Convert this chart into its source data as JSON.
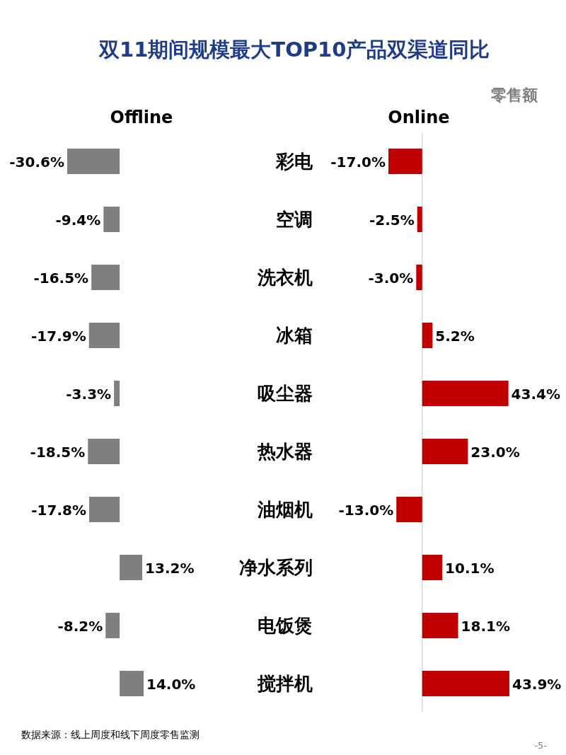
{
  "chart_data": [
    {
      "type": "other",
      "title": "双11期间规模最大TOP10产品双渠道同比",
      "subtitle": "零售额",
      "annotations": [
        "数据来源：线上周度和线下周度零售监测",
        "-5-"
      ]
    },
    {
      "type": "bar",
      "orientation": "horizontal",
      "title": "Offline",
      "tick_labels": "y",
      "categories": [
        "彩电",
        "空调",
        "洗衣机",
        "冰箱",
        "吸尘器",
        "热水器",
        "油烟机",
        "净水系列",
        "电饭煲",
        "搅拌机"
      ],
      "series": [
        {
          "color": "#7f7f7f",
          "values": [
            -30.6,
            -9.4,
            -16.5,
            -17.9,
            -3.3,
            -18.5,
            -17.8,
            13.2,
            -8.2,
            14.0
          ],
          "value_labels": [
            "-30.6%",
            "-9.4%",
            "-16.5%",
            "-17.9%",
            "-3.3%",
            "-18.5%",
            "-17.8%",
            "13.2%",
            "-8.2%",
            "14.0%"
          ]
        }
      ]
    },
    {
      "type": "bar",
      "orientation": "horizontal",
      "title": "Online",
      "tick_labels": false,
      "categories": [
        null,
        null,
        null,
        null,
        null,
        null,
        null,
        null,
        null,
        null
      ],
      "ref_lines": [
        {
          "axis": "x",
          "value": 0,
          "color": "#d9d9d9"
        }
      ],
      "series": [
        {
          "color": "#c00000",
          "values": [
            -17.0,
            -2.5,
            -3.0,
            5.2,
            43.4,
            23.0,
            -13.0,
            10.1,
            18.1,
            43.9
          ],
          "value_labels": [
            "-17.0%",
            "-2.5%",
            "-3.0%",
            "5.2%",
            "43.4%",
            "23.0%",
            "-13.0%",
            "10.1%",
            "18.1%",
            "43.9%"
          ]
        }
      ]
    }
  ]
}
